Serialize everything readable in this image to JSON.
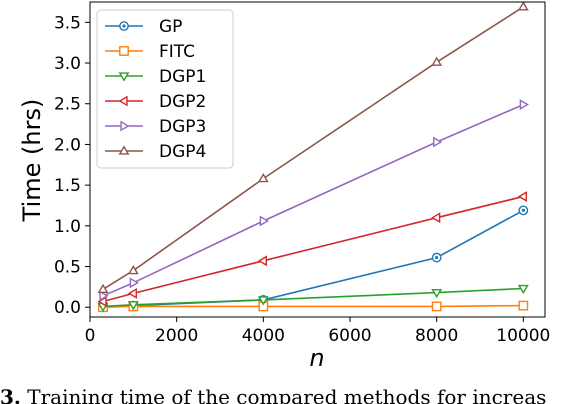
{
  "chart_data": {
    "type": "line",
    "xlabel": "n",
    "ylabel": "Time (hrs)",
    "xlim": [
      0,
      10500
    ],
    "ylim": [
      -0.12,
      3.75
    ],
    "xticks": [
      0,
      2000,
      4000,
      6000,
      8000,
      10000
    ],
    "yticks": [
      0.0,
      0.5,
      1.0,
      1.5,
      2.0,
      2.5,
      3.0,
      3.5
    ],
    "x": [
      300,
      1000,
      4000,
      8000,
      10000
    ],
    "legend_position": "top-left",
    "grid": false,
    "series": [
      {
        "name": "GP",
        "color": "#1f77b4",
        "marker": "circle-dot",
        "values": [
          0.0,
          0.02,
          0.09,
          0.61,
          1.19
        ]
      },
      {
        "name": "FITC",
        "color": "#ff7f0e",
        "marker": "square",
        "values": [
          0.0,
          0.01,
          0.01,
          0.01,
          0.02
        ]
      },
      {
        "name": "DGP1",
        "color": "#2ca02c",
        "marker": "triangle-down",
        "values": [
          0.01,
          0.03,
          0.09,
          0.18,
          0.23
        ]
      },
      {
        "name": "DGP2",
        "color": "#d62728",
        "marker": "triangle-left",
        "values": [
          0.07,
          0.17,
          0.57,
          1.1,
          1.36
        ]
      },
      {
        "name": "DGP3",
        "color": "#9467bd",
        "marker": "triangle-right",
        "values": [
          0.14,
          0.3,
          1.06,
          2.03,
          2.49
        ]
      },
      {
        "name": "DGP4",
        "color": "#8c564b",
        "marker": "triangle-up",
        "values": [
          0.22,
          0.45,
          1.58,
          3.01,
          3.69
        ]
      }
    ]
  },
  "caption": {
    "label": "3.",
    "text": " Training time of the compared methods for increas"
  }
}
